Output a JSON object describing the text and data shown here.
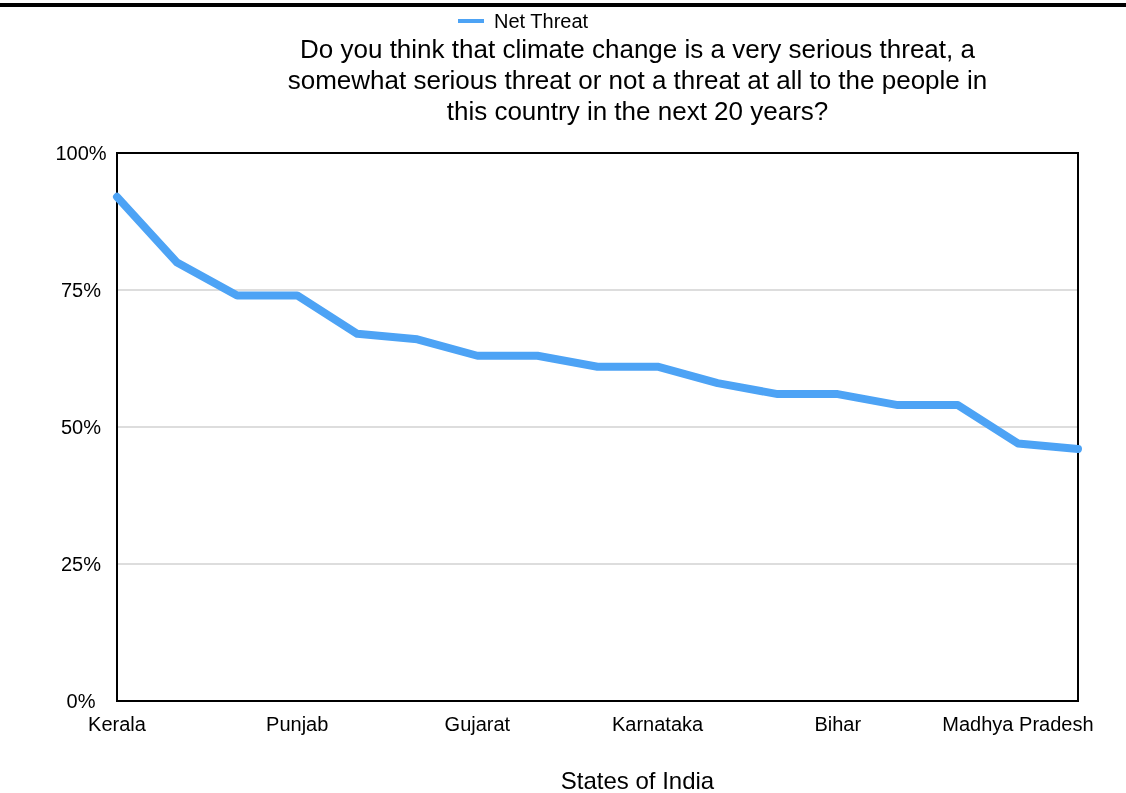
{
  "chart_data": {
    "type": "line",
    "title": "Do you think that climate change is a very serious threat, a somewhat serious threat or not a threat at all to the people in this country in the next 20 years?",
    "xlabel": "States of India",
    "categories": [
      "Kerala",
      null,
      null,
      "Punjab",
      null,
      null,
      "Gujarat",
      null,
      null,
      "Karnataka",
      null,
      null,
      "Bihar",
      null,
      null,
      "Madhya Pradesh",
      null
    ],
    "series": [
      {
        "name": "Net Threat",
        "color": "#4da3f5",
        "values": [
          92,
          80,
          74,
          74,
          67,
          66,
          63,
          63,
          61,
          61,
          58,
          56,
          56,
          54,
          54,
          47,
          46
        ]
      }
    ],
    "ylim": [
      0,
      100
    ],
    "yticks": [
      {
        "value": 0,
        "label": "0%"
      },
      {
        "value": 25,
        "label": "25%"
      },
      {
        "value": 50,
        "label": "50%"
      },
      {
        "value": 75,
        "label": "75%"
      },
      {
        "value": 100,
        "label": "100%"
      }
    ],
    "grid": "y",
    "legend": "top",
    "marker": "none",
    "line_style": "solid"
  }
}
